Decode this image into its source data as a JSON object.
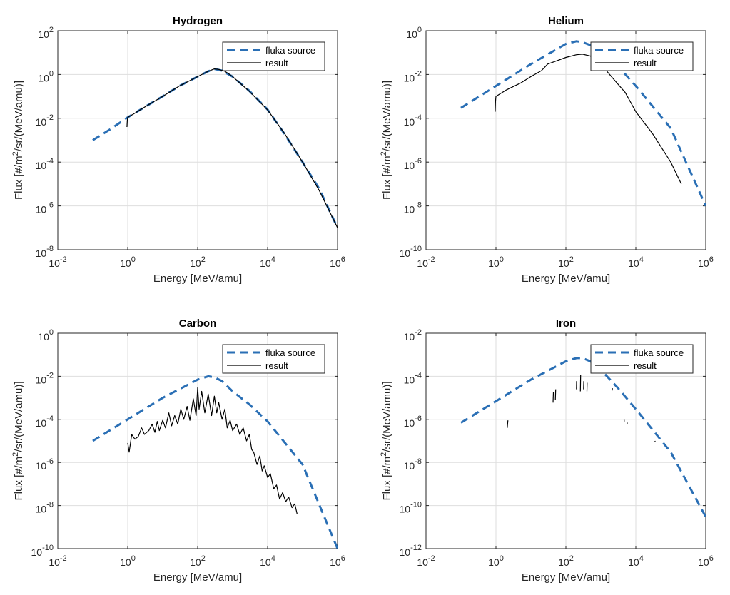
{
  "chart_data": [
    {
      "type": "line",
      "title": "Hydrogen",
      "xlabel": "Energy [MeV/amu]",
      "ylabel": [
        "Flux [#/m",
        "2",
        "/sr/(MeV/amu)]"
      ],
      "xscale": "log",
      "yscale": "log",
      "xlim": [
        0.01,
        1000000
      ],
      "ylim": [
        1e-08,
        100
      ],
      "xticks": [
        {
          "base": "10",
          "exp": "-2"
        },
        {
          "base": "10",
          "exp": "0"
        },
        {
          "base": "10",
          "exp": "2"
        },
        {
          "base": "10",
          "exp": "4"
        },
        {
          "base": "10",
          "exp": "6"
        }
      ],
      "yticks": [
        {
          "base": "10",
          "exp": "-8"
        },
        {
          "base": "10",
          "exp": "-6"
        },
        {
          "base": "10",
          "exp": "-4"
        },
        {
          "base": "10",
          "exp": "-2"
        },
        {
          "base": "10",
          "exp": "0"
        },
        {
          "base": "10",
          "exp": "2"
        }
      ],
      "grid": true,
      "legend_position": "top-right",
      "legend": [
        "fluka source",
        "result"
      ],
      "series": [
        {
          "name": "fluka source",
          "style": "dashed",
          "color": "#2a6fb5",
          "x": [
            0.1,
            0.3,
            1,
            3,
            10,
            30,
            100,
            200,
            300,
            500,
            1000,
            3000,
            10000,
            30000,
            100000,
            300000,
            1000000
          ],
          "y": [
            0.001,
            0.003,
            0.011,
            0.032,
            0.1,
            0.3,
            0.8,
            1.4,
            1.8,
            1.5,
            0.8,
            0.18,
            0.025,
            0.002,
            0.0001,
            6e-06,
            1e-07
          ]
        },
        {
          "name": "result",
          "style": "solid",
          "color": "#000000",
          "x": [
            0.95,
            0.97,
            1,
            1.5,
            3,
            10,
            30,
            100,
            200,
            300,
            400,
            600,
            1000,
            3000,
            10000,
            30000,
            100000,
            300000,
            1000000
          ],
          "y": [
            0.004,
            0.008,
            0.011,
            0.016,
            0.032,
            0.1,
            0.3,
            0.8,
            1.4,
            1.8,
            1.7,
            1.4,
            0.8,
            0.17,
            0.024,
            0.0021,
            0.0001,
            5e-06,
            1e-07
          ]
        }
      ]
    },
    {
      "type": "line",
      "title": "Helium",
      "xlabel": "Energy [MeV/amu]",
      "ylabel": [
        "Flux [#/m",
        "2",
        "/sr/(MeV/amu)]"
      ],
      "xscale": "log",
      "yscale": "log",
      "xlim": [
        0.01,
        1000000
      ],
      "ylim": [
        1e-10,
        1
      ],
      "xticks": [
        {
          "base": "10",
          "exp": "-2"
        },
        {
          "base": "10",
          "exp": "0"
        },
        {
          "base": "10",
          "exp": "2"
        },
        {
          "base": "10",
          "exp": "4"
        },
        {
          "base": "10",
          "exp": "6"
        }
      ],
      "yticks": [
        {
          "base": "10",
          "exp": "-10"
        },
        {
          "base": "10",
          "exp": "-8"
        },
        {
          "base": "10",
          "exp": "-6"
        },
        {
          "base": "10",
          "exp": "-4"
        },
        {
          "base": "10",
          "exp": "-2"
        },
        {
          "base": "10",
          "exp": "0"
        }
      ],
      "grid": true,
      "legend_position": "top-right",
      "legend": [
        "fluka source",
        "result"
      ],
      "series": [
        {
          "name": "fluka source",
          "style": "dashed",
          "color": "#2a6fb5",
          "x": [
            0.1,
            1,
            10,
            100,
            200,
            300,
            500,
            1000,
            3000,
            10000,
            100000,
            1000000
          ],
          "y": [
            0.0003,
            0.003,
            0.03,
            0.25,
            0.33,
            0.3,
            0.22,
            0.1,
            0.025,
            0.003,
            3.5e-05,
            1e-08
          ]
        },
        {
          "name": "result",
          "style": "solid",
          "color": "#000000",
          "x": [
            0.95,
            0.97,
            1,
            2,
            5,
            10,
            20,
            30,
            50,
            100,
            200,
            300,
            500,
            1000,
            2000,
            5000,
            10000,
            30000,
            100000,
            200000
          ],
          "y": [
            0.0002,
            0.0006,
            0.001,
            0.002,
            0.004,
            0.008,
            0.015,
            0.03,
            0.04,
            0.06,
            0.08,
            0.085,
            0.07,
            0.03,
            0.008,
            0.0015,
            0.0002,
            2e-05,
            1e-06,
            1e-07
          ]
        }
      ]
    },
    {
      "type": "line",
      "title": "Carbon",
      "xlabel": "Energy [MeV/amu]",
      "ylabel": [
        "Flux [#/m",
        "2",
        "/sr/(MeV/amu)]"
      ],
      "xscale": "log",
      "yscale": "log",
      "xlim": [
        0.01,
        1000000
      ],
      "ylim": [
        1e-10,
        1
      ],
      "xticks": [
        {
          "base": "10",
          "exp": "-2"
        },
        {
          "base": "10",
          "exp": "0"
        },
        {
          "base": "10",
          "exp": "2"
        },
        {
          "base": "10",
          "exp": "4"
        },
        {
          "base": "10",
          "exp": "6"
        }
      ],
      "yticks": [
        {
          "base": "10",
          "exp": "-10"
        },
        {
          "base": "10",
          "exp": "-8"
        },
        {
          "base": "10",
          "exp": "-6"
        },
        {
          "base": "10",
          "exp": "-4"
        },
        {
          "base": "10",
          "exp": "-2"
        },
        {
          "base": "10",
          "exp": "0"
        }
      ],
      "grid": true,
      "legend_position": "top-right",
      "legend": [
        "fluka source",
        "result"
      ],
      "series": [
        {
          "name": "fluka source",
          "style": "dashed",
          "color": "#2a6fb5",
          "x": [
            0.1,
            1,
            10,
            100,
            200,
            300,
            500,
            1000,
            3000,
            10000,
            100000,
            1000000
          ],
          "y": [
            1e-05,
            0.0001,
            0.001,
            0.007,
            0.01,
            0.009,
            0.006,
            0.002,
            0.0005,
            8e-05,
            8e-07,
            1e-10
          ]
        },
        {
          "name": "result",
          "style": "solid",
          "color": "#000000",
          "x": [
            1,
            1.1,
            1.3,
            1.6,
            2,
            2.5,
            3,
            4,
            5,
            6,
            7,
            8,
            10,
            12,
            15,
            18,
            22,
            27,
            33,
            40,
            50,
            60,
            75,
            90,
            100,
            110,
            130,
            160,
            200,
            250,
            300,
            350,
            400,
            500,
            600,
            700,
            850,
            1000,
            1300,
            1600,
            2000,
            2500,
            3000,
            3500,
            4000,
            5000,
            6000,
            7000,
            8000,
            10000,
            12000,
            15000,
            18000,
            22000,
            27000,
            33000,
            40000,
            50000,
            60000,
            70000
          ],
          "y": [
            8e-06,
            3e-06,
            2e-05,
            1.2e-05,
            1.6e-05,
            4e-05,
            2e-05,
            3e-05,
            6e-05,
            2.5e-05,
            8e-05,
            3e-05,
            9e-05,
            4e-05,
            0.0002,
            5e-05,
            0.00015,
            6e-05,
            0.0003,
            0.0001,
            0.0004,
            9e-05,
            0.0009,
            0.00015,
            0.003,
            0.0003,
            0.002,
            0.0002,
            0.0015,
            0.00015,
            0.0012,
            0.0002,
            0.0006,
            0.0001,
            0.0003,
            4e-05,
            9e-05,
            3e-05,
            6e-05,
            2e-05,
            4e-05,
            1e-05,
            2e-05,
            4e-06,
            3e-06,
            8e-07,
            2e-06,
            4e-07,
            7e-07,
            2e-07,
            3e-07,
            6e-08,
            9e-08,
            2e-08,
            4e-08,
            1.5e-08,
            2.5e-08,
            8e-09,
            1.2e-08,
            4e-09
          ]
        }
      ]
    },
    {
      "type": "line",
      "title": "Iron",
      "xlabel": "Energy [MeV/amu]",
      "ylabel": [
        "Flux [#/m",
        "2",
        "/sr/(MeV/amu)]"
      ],
      "xscale": "log",
      "yscale": "log",
      "xlim": [
        0.01,
        1000000
      ],
      "ylim": [
        1e-12,
        0.01
      ],
      "xticks": [
        {
          "base": "10",
          "exp": "-2"
        },
        {
          "base": "10",
          "exp": "0"
        },
        {
          "base": "10",
          "exp": "2"
        },
        {
          "base": "10",
          "exp": "4"
        },
        {
          "base": "10",
          "exp": "6"
        }
      ],
      "yticks": [
        {
          "base": "10",
          "exp": "-12"
        },
        {
          "base": "10",
          "exp": "-10"
        },
        {
          "base": "10",
          "exp": "-8"
        },
        {
          "base": "10",
          "exp": "-6"
        },
        {
          "base": "10",
          "exp": "-4"
        },
        {
          "base": "10",
          "exp": "-2"
        }
      ],
      "grid": true,
      "legend_position": "top-right",
      "legend": [
        "fluka source",
        "result"
      ],
      "series": [
        {
          "name": "fluka source",
          "style": "dashed",
          "color": "#2a6fb5",
          "x": [
            0.1,
            1,
            10,
            100,
            200,
            300,
            500,
            1000,
            3000,
            10000,
            100000,
            1000000
          ],
          "y": [
            7e-07,
            7e-06,
            7e-05,
            0.0005,
            0.0007,
            0.0007,
            0.0005,
            0.0002,
            3e-05,
            3e-06,
            3e-08,
            3e-11
          ]
        },
        {
          "name": "result",
          "style": "solid",
          "color": "#000000",
          "segments": [
            {
              "x": [
                2.1,
                2.2
              ],
              "y": [
                4e-07,
                9e-07
              ]
            },
            {
              "x": [
                43,
                44
              ],
              "y": [
                6e-06,
                1.8e-05
              ]
            },
            {
              "x": [
                50,
                51
              ],
              "y": [
                8e-06,
                2.5e-05
              ]
            },
            {
              "x": [
                200,
                202
              ],
              "y": [
                2.5e-05,
                6e-05
              ]
            },
            {
              "x": [
                260,
                265
              ],
              "y": [
                2e-05,
                0.00012
              ]
            },
            {
              "x": [
                320,
                325
              ],
              "y": [
                2.5e-05,
                6e-05
              ]
            },
            {
              "x": [
                400,
                405
              ],
              "y": [
                2e-05,
                5e-05
              ]
            },
            {
              "x": [
                2100,
                2150
              ],
              "y": [
                2.2e-05,
                2.8e-05
              ]
            },
            {
              "x": [
                4600,
                4700
              ],
              "y": [
                1e-06,
                8e-07
              ]
            },
            {
              "x": [
                5600,
                5700
              ],
              "y": [
                7.5e-07,
                6e-07
              ]
            },
            {
              "x": [
                35000,
                36000
              ],
              "y": [
                1e-07,
                9e-08
              ]
            }
          ]
        }
      ]
    }
  ]
}
